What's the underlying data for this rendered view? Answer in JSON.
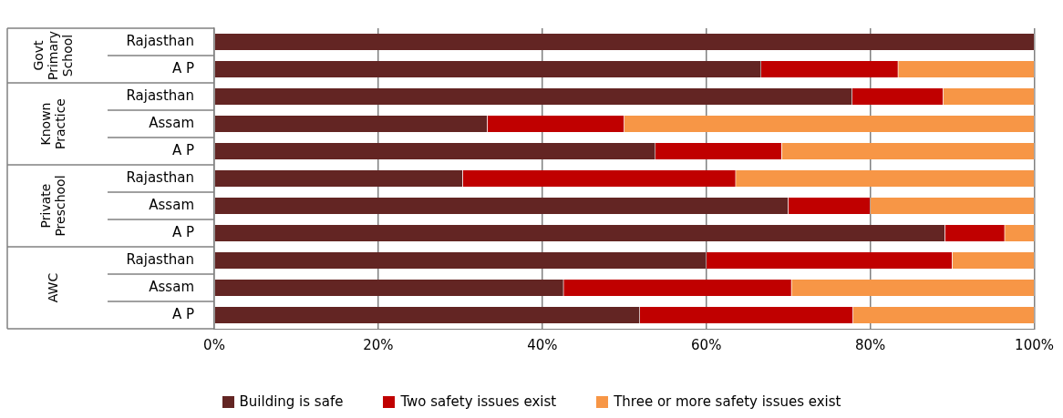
{
  "chart_data": {
    "type": "bar",
    "orientation": "horizontal",
    "stacked": true,
    "categories": [
      "Rajasthan",
      "A P",
      "Rajasthan",
      "Assam",
      "A P",
      "Rajasthan",
      "Assam",
      "A P",
      "Rajasthan",
      "Assam",
      "A P"
    ],
    "annotations": [
      "Govt Primary School",
      "Known Practice",
      "Private Preschool",
      "AWC"
    ],
    "series": [
      {
        "name": "Building is safe",
        "color": "#632523",
        "values": [
          100,
          66.7,
          77.8,
          33.3,
          53.8,
          30.3,
          70,
          89.1,
          60,
          42.6,
          51.9
        ]
      },
      {
        "name": "Two safety issues exist",
        "color": "#c00000",
        "values": [
          0,
          16.7,
          11.1,
          16.7,
          15.4,
          33.3,
          10,
          7.3,
          30,
          27.8,
          26
        ]
      },
      {
        "name": "Three or more safety issues exist",
        "color": "#f79646",
        "values": [
          0,
          16.6,
          11.1,
          50,
          30.8,
          36.4,
          20,
          3.6,
          10,
          29.6,
          22.1
        ]
      }
    ],
    "xlim": [
      0,
      100
    ],
    "xticks": [
      {
        "value": 0,
        "label": "0%"
      },
      {
        "value": 20,
        "label": "20%"
      },
      {
        "value": 40,
        "label": "40%"
      },
      {
        "value": 60,
        "label": "60%"
      },
      {
        "value": 80,
        "label": "80%"
      },
      {
        "value": 100,
        "label": "100%"
      }
    ],
    "grid": "x",
    "legend": "bottom"
  }
}
